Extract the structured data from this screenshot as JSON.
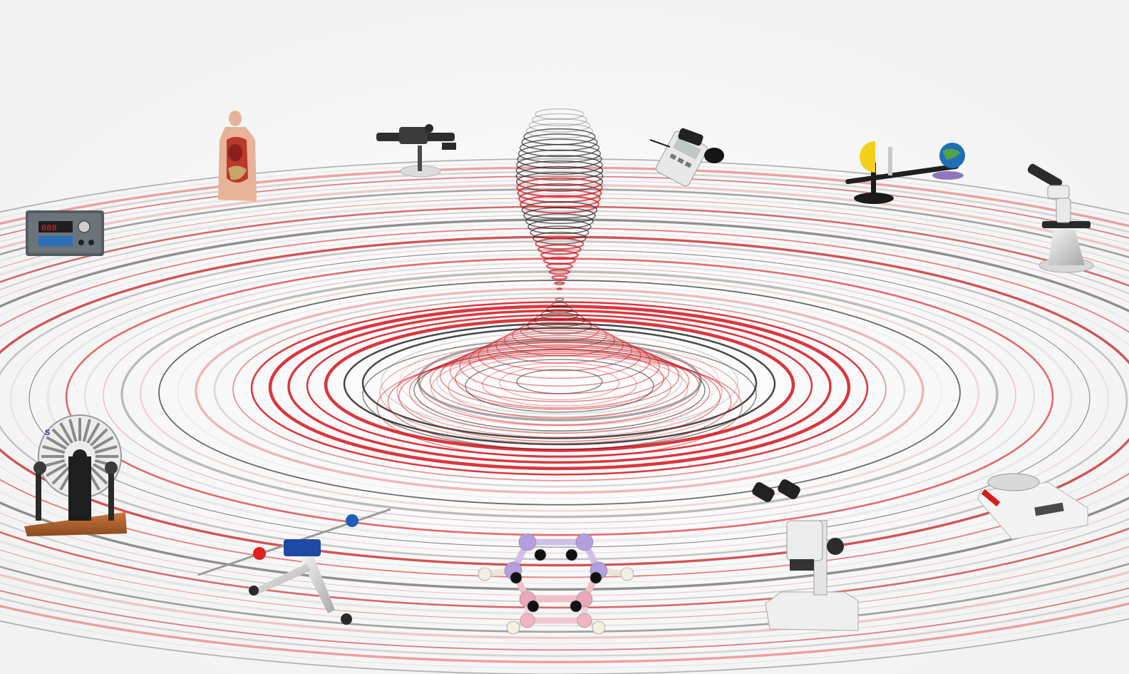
{
  "scene": {
    "background": "#ffffff",
    "ring_colors": [
      "#c8c8c8",
      "#9a9a9a",
      "#3a3a3a",
      "#e03a3a",
      "#c41e1e",
      "#e8b0b0",
      "#d9d9d9"
    ],
    "accent_red": "#d4141c",
    "dark": "#1a1a1a"
  },
  "instruments": [
    {
      "icon": "digital-meter-icon"
    },
    {
      "icon": "anatomy-torso-icon"
    },
    {
      "icon": "optical-bench-icon"
    },
    {
      "icon": "handheld-meter-icon"
    },
    {
      "icon": "tellurion-icon"
    },
    {
      "icon": "microscope-icon"
    },
    {
      "icon": "wimshurst-machine-icon"
    },
    {
      "icon": "rod-stand-icon"
    },
    {
      "icon": "molecular-model-icon"
    },
    {
      "icon": "stereo-microscope-icon"
    },
    {
      "icon": "lab-balance-icon"
    }
  ]
}
